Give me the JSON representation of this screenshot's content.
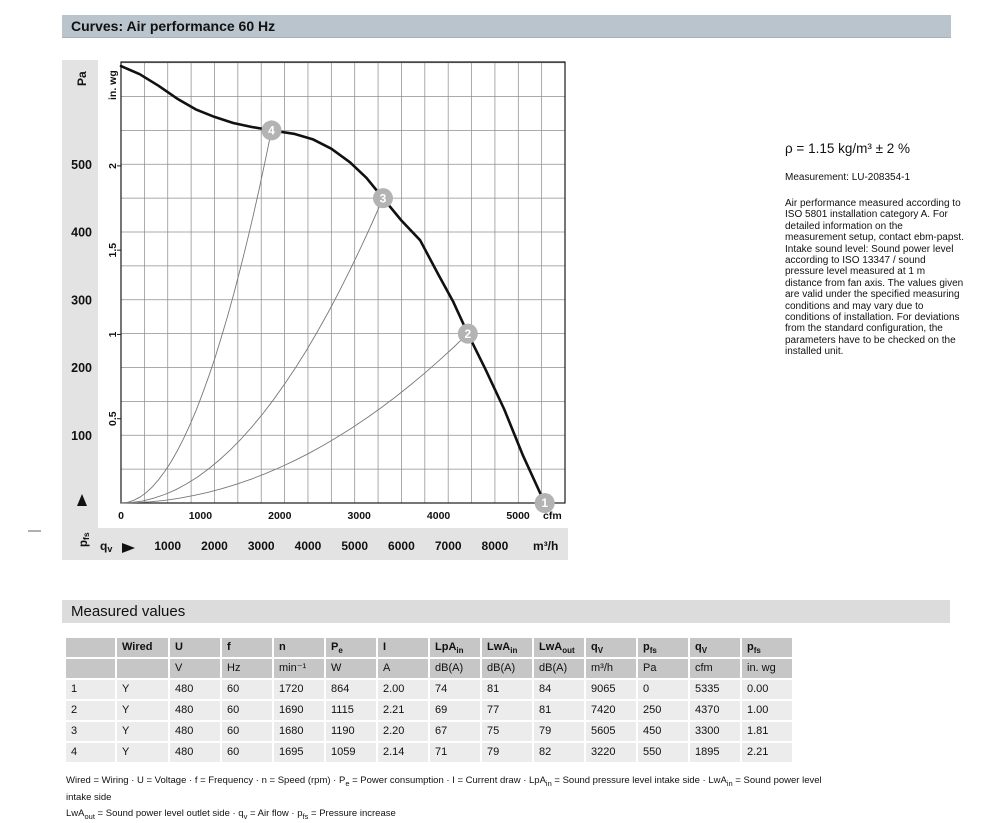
{
  "page": {
    "title_bar": "Curves: Air performance 60 Hz",
    "section2_bar": "Measured values"
  },
  "right_panel": {
    "density": "ρ = 1.15 kg/m³ ± 2 %",
    "measurement": "Measurement: LU-208354-1",
    "note": "Air performance measured according to ISO 5801 installation category A. For detailed information on the measurement setup, contact ebm-papst. Intake sound level: Sound power level according to ISO 13347 / sound pressure level measured at 1 m distance from fan axis. The values given are valid under the specified measuring conditions and may vary due to conditions of installation. For deviations from the standard configuration, the parameters have to be checked on the installed unit."
  },
  "chart_data": {
    "type": "line",
    "title": "Air performance 60 Hz",
    "axes": {
      "y_left": {
        "label": "Pa",
        "ticks": [
          100,
          200,
          300,
          400,
          500
        ],
        "range": [
          0,
          651
        ],
        "grid_step_pa": 50
      },
      "y_inner": {
        "label": "in. wg",
        "ticks": [
          0.5,
          1,
          1.5,
          2
        ],
        "pa_per_unit": 248.84
      },
      "y_axis_symbol": {
        "base": "p",
        "sub": "fs"
      },
      "x_cfm": {
        "label": "cfm",
        "ticks": [
          0,
          1000,
          2000,
          3000,
          4000,
          5000
        ],
        "m3h_per_cfm": 1.699
      },
      "x_m3h": {
        "label": "m³/h",
        "ticks": [
          1000,
          2000,
          3000,
          4000,
          5000,
          6000,
          7000,
          8000
        ],
        "range": [
          0,
          9500
        ],
        "grid_step": 500
      },
      "x_axis_symbol": {
        "base": "q",
        "sub": "v"
      }
    },
    "icons": {
      "x_axis_arrow": "arrow-right-icon",
      "y_axis_arrow": "arrow-up-icon"
    },
    "fan_curve_m3h_pa": [
      [
        0,
        645
      ],
      [
        400,
        633
      ],
      [
        800,
        616
      ],
      [
        1200,
        597
      ],
      [
        1600,
        581
      ],
      [
        2000,
        570
      ],
      [
        2400,
        561
      ],
      [
        2800,
        555
      ],
      [
        3220,
        550
      ],
      [
        3700,
        545
      ],
      [
        4100,
        537
      ],
      [
        4500,
        523
      ],
      [
        4900,
        503
      ],
      [
        5250,
        480
      ],
      [
        5605,
        450
      ],
      [
        6000,
        417
      ],
      [
        6400,
        388
      ],
      [
        6800,
        336
      ],
      [
        7100,
        298
      ],
      [
        7420,
        250
      ],
      [
        7800,
        197
      ],
      [
        8200,
        138
      ],
      [
        8600,
        70
      ],
      [
        9065,
        0
      ]
    ],
    "operating_points": [
      {
        "id": "1",
        "qv_m3h": 9065,
        "pfs_pa": 0
      },
      {
        "id": "2",
        "qv_m3h": 7420,
        "pfs_pa": 250
      },
      {
        "id": "3",
        "qv_m3h": 5605,
        "pfs_pa": 450
      },
      {
        "id": "4",
        "qv_m3h": 3220,
        "pfs_pa": 550
      }
    ],
    "colors": {
      "band": "#e3e3e3",
      "plot_bg": "#ffffff",
      "grid": "#8f8f8f",
      "frame": "#1a1a1a",
      "fan_curve": "#111111",
      "system_curve": "#787878",
      "marker_fill": "#b3b3b3",
      "marker_text": "#ffffff"
    }
  },
  "table": {
    "columns": [
      {
        "label": "",
        "unit": ""
      },
      {
        "label": "Wired",
        "unit": ""
      },
      {
        "label": "U",
        "unit": "V"
      },
      {
        "label": "f",
        "unit": "Hz"
      },
      {
        "label": "n",
        "unit": "min⁻¹"
      },
      {
        "label": "P",
        "sub": "e",
        "unit": "W"
      },
      {
        "label": "I",
        "unit": "A"
      },
      {
        "label": "LpA",
        "sub": "in",
        "unit": "dB(A)"
      },
      {
        "label": "LwA",
        "sub": "in",
        "unit": "dB(A)"
      },
      {
        "label": "LwA",
        "sub": "out",
        "unit": "dB(A)"
      },
      {
        "label": "q",
        "sub": "V",
        "unit": "m³/h"
      },
      {
        "label": "p",
        "sub": "fs",
        "unit": "Pa"
      },
      {
        "label": "q",
        "sub": "V",
        "unit": "cfm"
      },
      {
        "label": "p",
        "sub": "fs",
        "unit": "in. wg"
      }
    ],
    "rows": [
      [
        "1",
        "Y",
        "480",
        "60",
        "1720",
        "864",
        "2.00",
        "74",
        "81",
        "84",
        "9065",
        "0",
        "5335",
        "0.00"
      ],
      [
        "2",
        "Y",
        "480",
        "60",
        "1690",
        "1115",
        "2.21",
        "69",
        "77",
        "81",
        "7420",
        "250",
        "4370",
        "1.00"
      ],
      [
        "3",
        "Y",
        "480",
        "60",
        "1680",
        "1190",
        "2.20",
        "67",
        "75",
        "79",
        "5605",
        "450",
        "3300",
        "1.81"
      ],
      [
        "4",
        "Y",
        "480",
        "60",
        "1695",
        "1059",
        "2.14",
        "71",
        "79",
        "82",
        "3220",
        "550",
        "1895",
        "2.21"
      ]
    ]
  },
  "footnotes": [
    [
      {
        "t": "Wired = Wiring · U = Voltage · f = Frequency · n = Speed (rpm) · P"
      },
      {
        "sub": "e"
      },
      {
        "t": " = Power consumption · I = Current draw · LpA"
      },
      {
        "sub": "in"
      },
      {
        "t": " = Sound pressure level intake side · LwA"
      },
      {
        "sub": "in"
      },
      {
        "t": " = Sound power level intake side"
      }
    ],
    [
      {
        "t": "LwA"
      },
      {
        "sub": "out"
      },
      {
        "t": " = Sound power level outlet side · q"
      },
      {
        "sub": "v"
      },
      {
        "t": " = Air flow · p"
      },
      {
        "sub": "fs"
      },
      {
        "t": " = Pressure increase"
      }
    ]
  ],
  "colors": {
    "title_bar_bg": "#b9c4cd",
    "section_bar_bg": "#dcdcdc",
    "table_header_bg": "#c6c6c6",
    "table_row_bg": "#ececec"
  }
}
